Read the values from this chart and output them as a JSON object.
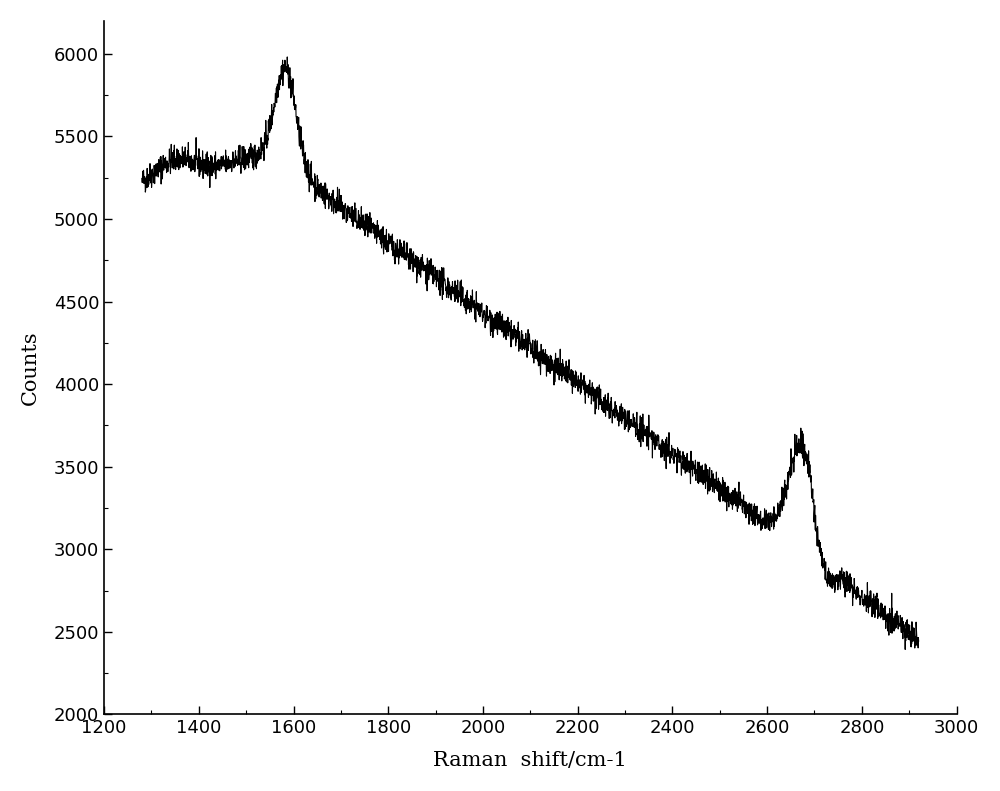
{
  "xlim": [
    1200,
    3000
  ],
  "ylim": [
    2000,
    6200
  ],
  "xlabel": "Raman  shift/cm-1",
  "ylabel": "Counts",
  "line_color": "#000000",
  "line_width": 0.8,
  "background_color": "#ffffff",
  "xticks": [
    1200,
    1400,
    1600,
    1800,
    2000,
    2200,
    2400,
    2600,
    2800,
    3000
  ],
  "yticks": [
    2000,
    2500,
    3000,
    3500,
    4000,
    4500,
    5000,
    5500,
    6000
  ],
  "tick_fontsize": 13,
  "label_fontsize": 15,
  "figsize": [
    10.0,
    7.91
  ],
  "dpi": 100,
  "noise_std": 40,
  "seed": 42,
  "xlabel_spaces": "Raman  shift/cm-1"
}
